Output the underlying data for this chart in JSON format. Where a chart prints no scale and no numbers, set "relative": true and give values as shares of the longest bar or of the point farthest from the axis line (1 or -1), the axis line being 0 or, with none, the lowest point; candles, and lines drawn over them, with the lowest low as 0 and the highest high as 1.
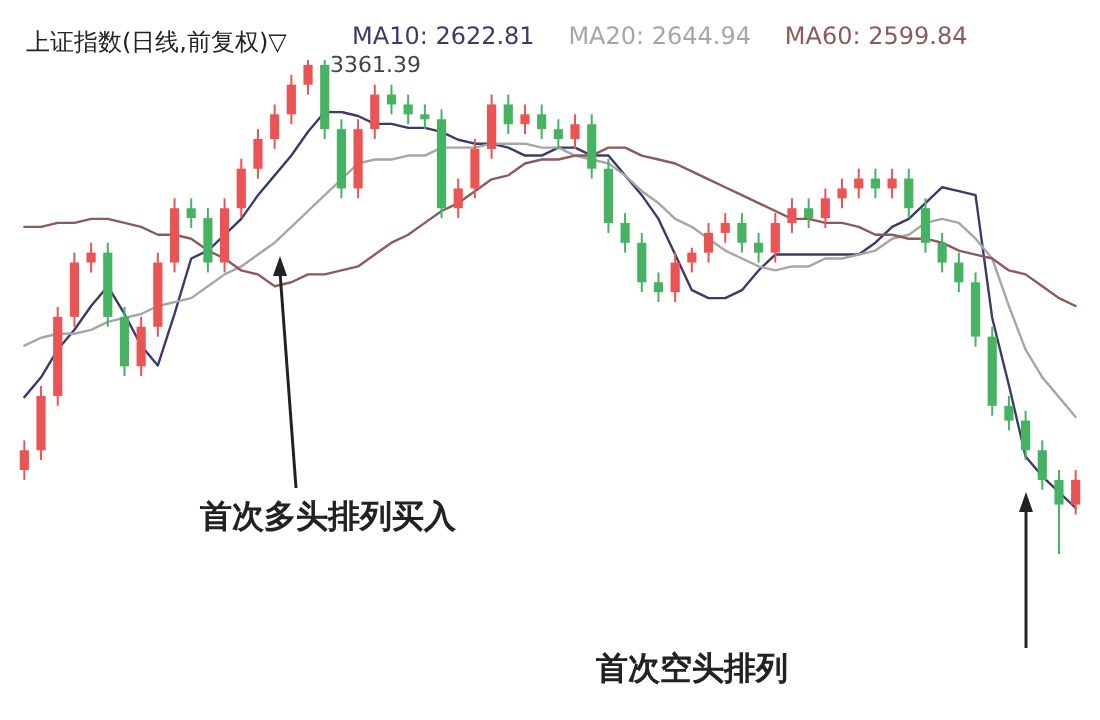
{
  "chart_data": [
    {
      "type": "candlestick",
      "title": "上证指数(日线,前复权)▽",
      "relative": true,
      "categories": [
        null,
        null,
        null,
        null,
        null,
        null,
        null,
        null,
        null,
        null,
        null,
        null,
        null,
        null,
        null,
        null,
        null,
        null,
        null,
        null,
        null,
        null,
        null,
        null,
        null,
        null,
        null,
        null,
        null,
        null,
        null,
        null,
        null,
        null,
        null,
        null,
        null,
        null,
        null,
        null,
        null,
        null,
        null,
        null,
        null,
        null,
        null,
        null,
        null,
        null,
        null,
        null,
        null,
        null,
        null,
        null,
        null,
        null,
        null,
        null,
        null,
        null,
        null,
        null
      ],
      "ohlc": [
        [
          0.17,
          0.23,
          0.15,
          0.21
        ],
        [
          0.21,
          0.34,
          0.19,
          0.32
        ],
        [
          0.32,
          0.5,
          0.3,
          0.48
        ],
        [
          0.48,
          0.61,
          0.46,
          0.59
        ],
        [
          0.59,
          0.63,
          0.57,
          0.61
        ],
        [
          0.61,
          0.63,
          0.46,
          0.48
        ],
        [
          0.48,
          0.5,
          0.36,
          0.38
        ],
        [
          0.38,
          0.48,
          0.36,
          0.46
        ],
        [
          0.46,
          0.61,
          0.44,
          0.59
        ],
        [
          0.59,
          0.72,
          0.57,
          0.7
        ],
        [
          0.7,
          0.72,
          0.66,
          0.68
        ],
        [
          0.68,
          0.7,
          0.57,
          0.59
        ],
        [
          0.59,
          0.72,
          0.57,
          0.7
        ],
        [
          0.7,
          0.8,
          0.68,
          0.78
        ],
        [
          0.78,
          0.86,
          0.76,
          0.84
        ],
        [
          0.84,
          0.91,
          0.82,
          0.89
        ],
        [
          0.89,
          0.97,
          0.87,
          0.95
        ],
        [
          0.95,
          1,
          0.93,
          0.99
        ],
        [
          0.99,
          1,
          0.84,
          0.86
        ],
        [
          0.86,
          0.88,
          0.72,
          0.74
        ],
        [
          0.74,
          0.88,
          0.72,
          0.86
        ],
        [
          0.86,
          0.95,
          0.84,
          0.93
        ],
        [
          0.93,
          0.95,
          0.89,
          0.91
        ],
        [
          0.91,
          0.93,
          0.87,
          0.89
        ],
        [
          0.89,
          0.91,
          0.86,
          0.88
        ],
        [
          0.88,
          0.9,
          0.68,
          0.7
        ],
        [
          0.7,
          0.76,
          0.68,
          0.74
        ],
        [
          0.74,
          0.84,
          0.72,
          0.82
        ],
        [
          0.82,
          0.93,
          0.8,
          0.91
        ],
        [
          0.91,
          0.93,
          0.85,
          0.87
        ],
        [
          0.87,
          0.91,
          0.85,
          0.89
        ],
        [
          0.89,
          0.91,
          0.84,
          0.86
        ],
        [
          0.86,
          0.88,
          0.82,
          0.84
        ],
        [
          0.84,
          0.89,
          0.82,
          0.87
        ],
        [
          0.87,
          0.89,
          0.76,
          0.78
        ],
        [
          0.78,
          0.8,
          0.65,
          0.67
        ],
        [
          0.67,
          0.69,
          0.61,
          0.63
        ],
        [
          0.63,
          0.65,
          0.53,
          0.55
        ],
        [
          0.55,
          0.57,
          0.51,
          0.53
        ],
        [
          0.53,
          0.61,
          0.51,
          0.59
        ],
        [
          0.59,
          0.62,
          0.57,
          0.61
        ],
        [
          0.61,
          0.67,
          0.59,
          0.65
        ],
        [
          0.65,
          0.69,
          0.63,
          0.67
        ],
        [
          0.67,
          0.69,
          0.61,
          0.63
        ],
        [
          0.63,
          0.65,
          0.59,
          0.61
        ],
        [
          0.61,
          0.69,
          0.59,
          0.67
        ],
        [
          0.67,
          0.72,
          0.65,
          0.7
        ],
        [
          0.7,
          0.72,
          0.66,
          0.68
        ],
        [
          0.68,
          0.74,
          0.66,
          0.72
        ],
        [
          0.72,
          0.76,
          0.7,
          0.74
        ],
        [
          0.74,
          0.78,
          0.72,
          0.76
        ],
        [
          0.76,
          0.78,
          0.72,
          0.74
        ],
        [
          0.74,
          0.78,
          0.72,
          0.76
        ],
        [
          0.76,
          0.78,
          0.68,
          0.7
        ],
        [
          0.7,
          0.72,
          0.61,
          0.63
        ],
        [
          0.63,
          0.65,
          0.57,
          0.59
        ],
        [
          0.59,
          0.61,
          0.53,
          0.55
        ],
        [
          0.55,
          0.57,
          0.42,
          0.44
        ],
        [
          0.44,
          0.46,
          0.28,
          0.3
        ],
        [
          0.3,
          0.32,
          0.25,
          0.27
        ],
        [
          0.27,
          0.29,
          0.19,
          0.21
        ],
        [
          0.21,
          0.23,
          0.13,
          0.15
        ],
        [
          0.15,
          0.17,
          0,
          0.1
        ],
        [
          0.1,
          0.17,
          0.08,
          0.15
        ]
      ],
      "annotations": [
        "3361.39",
        "首次多头排列买入",
        "首次空头排列"
      ]
    },
    {
      "type": "line",
      "relative": true,
      "categories": [
        null,
        null,
        null,
        null,
        null,
        null,
        null,
        null,
        null,
        null,
        null,
        null,
        null,
        null,
        null,
        null,
        null,
        null,
        null,
        null,
        null,
        null,
        null,
        null,
        null,
        null,
        null,
        null,
        null,
        null,
        null,
        null,
        null,
        null,
        null,
        null,
        null,
        null,
        null,
        null,
        null,
        null,
        null,
        null,
        null,
        null,
        null,
        null,
        null,
        null,
        null,
        null,
        null,
        null,
        null,
        null,
        null,
        null,
        null,
        null,
        null,
        null,
        null,
        null
      ],
      "series": [
        {
          "name": "MA10: 2622.81",
          "color": "#3b3b6b",
          "values": [
            0.28,
            0.33,
            0.4,
            0.45,
            0.51,
            0.56,
            0.49,
            0.41,
            0.36,
            0.49,
            0.63,
            0.65,
            0.69,
            0.73,
            0.79,
            0.84,
            0.89,
            0.95,
            1,
            1,
            0.99,
            0.97,
            0.97,
            0.96,
            0.96,
            0.95,
            0.93,
            0.92,
            0.92,
            0.91,
            0.89,
            0.89,
            0.91,
            0.91,
            0.89,
            0.89,
            0.84,
            0.79,
            0.73,
            0.64,
            0.55,
            0.53,
            0.53,
            0.55,
            0.6,
            0.64,
            0.64,
            0.64,
            0.64,
            0.64,
            0.64,
            0.67,
            0.71,
            0.73,
            0.77,
            0.81,
            0.8,
            0.79,
            0.48,
            0.31,
            0.13,
            0.08,
            0.04,
            0
          ]
        },
        {
          "name": "MA20: 2644.94",
          "color": "#a6a6a6",
          "values": [
            0.41,
            0.43,
            0.44,
            0.44,
            0.45,
            0.47,
            0.48,
            0.49,
            0.51,
            0.52,
            0.53,
            0.56,
            0.59,
            0.61,
            0.64,
            0.67,
            0.71,
            0.75,
            0.79,
            0.83,
            0.87,
            0.88,
            0.88,
            0.89,
            0.89,
            0.91,
            0.91,
            0.91,
            0.92,
            0.92,
            0.92,
            0.91,
            0.91,
            0.89,
            0.88,
            0.87,
            0.84,
            0.8,
            0.77,
            0.73,
            0.71,
            0.68,
            0.65,
            0.63,
            0.61,
            0.6,
            0.61,
            0.61,
            0.63,
            0.63,
            0.64,
            0.65,
            0.68,
            0.69,
            0.72,
            0.73,
            0.72,
            0.68,
            0.63,
            0.51,
            0.4,
            0.33,
            0.28,
            0.23
          ]
        },
        {
          "name": "MA60: 2599.84",
          "color": "#8c5a5a",
          "values": [
            0.71,
            0.71,
            0.72,
            0.72,
            0.73,
            0.73,
            0.72,
            0.71,
            0.69,
            0.69,
            0.68,
            0.65,
            0.63,
            0.6,
            0.59,
            0.56,
            0.57,
            0.59,
            0.59,
            0.6,
            0.61,
            0.64,
            0.67,
            0.69,
            0.72,
            0.75,
            0.77,
            0.8,
            0.83,
            0.84,
            0.87,
            0.88,
            0.88,
            0.89,
            0.89,
            0.91,
            0.91,
            0.89,
            0.88,
            0.87,
            0.85,
            0.83,
            0.81,
            0.79,
            0.77,
            0.75,
            0.73,
            0.73,
            0.72,
            0.72,
            0.71,
            0.69,
            0.69,
            0.68,
            0.68,
            0.67,
            0.65,
            0.64,
            0.63,
            0.6,
            0.59,
            0.56,
            0.53,
            0.51
          ]
        }
      ]
    }
  ]
}
